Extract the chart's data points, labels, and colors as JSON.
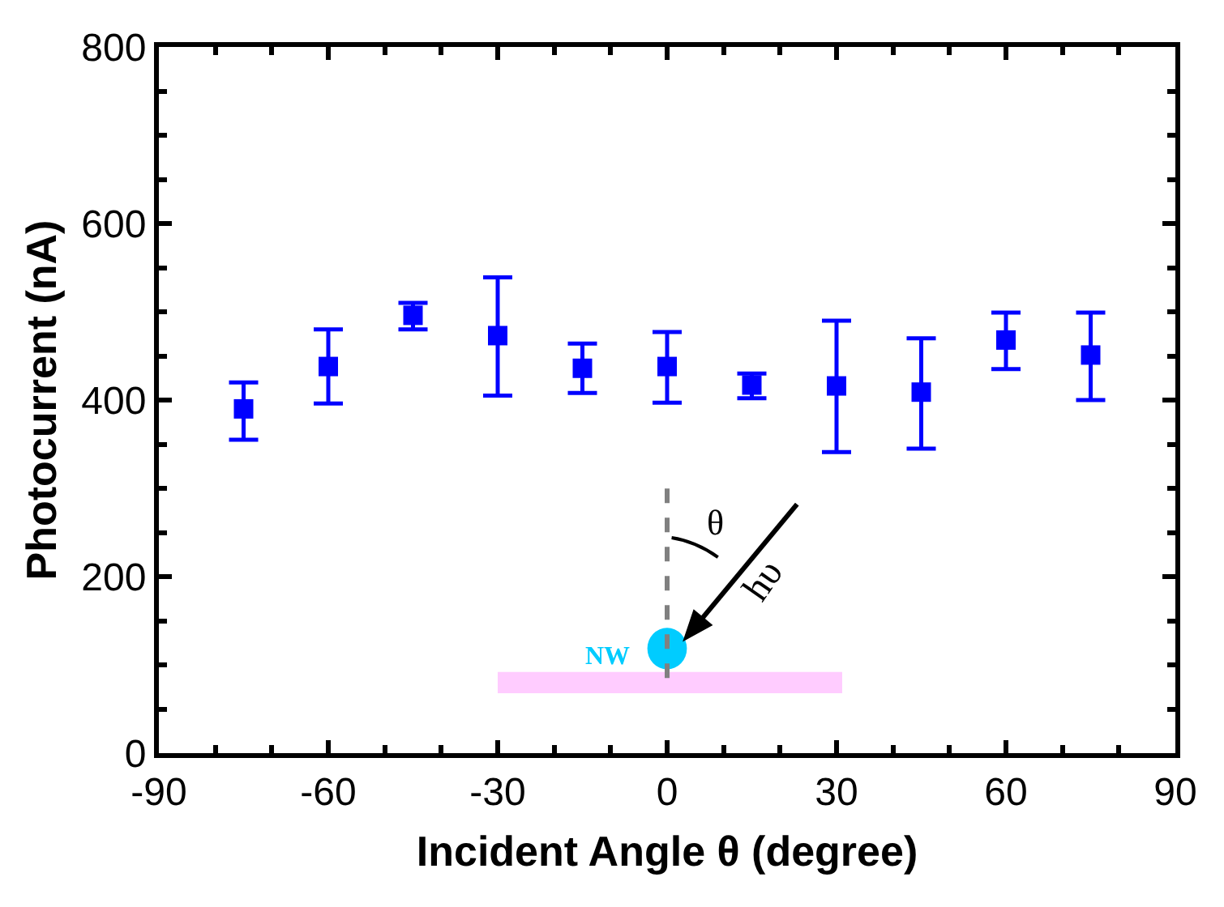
{
  "chart_data": {
    "type": "scatter",
    "xlabel": "Incident Angle θ (degree)",
    "ylabel": "Photocurrent (nA)",
    "x": [
      -75,
      -60,
      -45,
      -30,
      -15,
      0,
      15,
      30,
      45,
      60,
      75
    ],
    "series": [
      {
        "color": "#0000ff",
        "values": [
          390,
          438,
          496,
          473,
          436,
          438,
          417,
          416,
          409,
          468,
          451
        ],
        "errors": [
          [
            355,
            420
          ],
          [
            396,
            480
          ],
          [
            480,
            510
          ],
          [
            405,
            539
          ],
          [
            408,
            464
          ],
          [
            397,
            477
          ],
          [
            402,
            430
          ],
          [
            341,
            490
          ],
          [
            345,
            470
          ],
          [
            435,
            499
          ],
          [
            400,
            499
          ]
        ]
      }
    ],
    "xlim": [
      -90,
      90
    ],
    "xticks": [
      -90,
      -60,
      -30,
      0,
      30,
      60,
      90
    ],
    "ylim": [
      0,
      800
    ],
    "yticks": [
      0,
      200,
      400,
      600,
      800
    ],
    "marker": "square",
    "grid": false,
    "annotations": [
      "NW",
      "θ",
      "hυ"
    ]
  }
}
